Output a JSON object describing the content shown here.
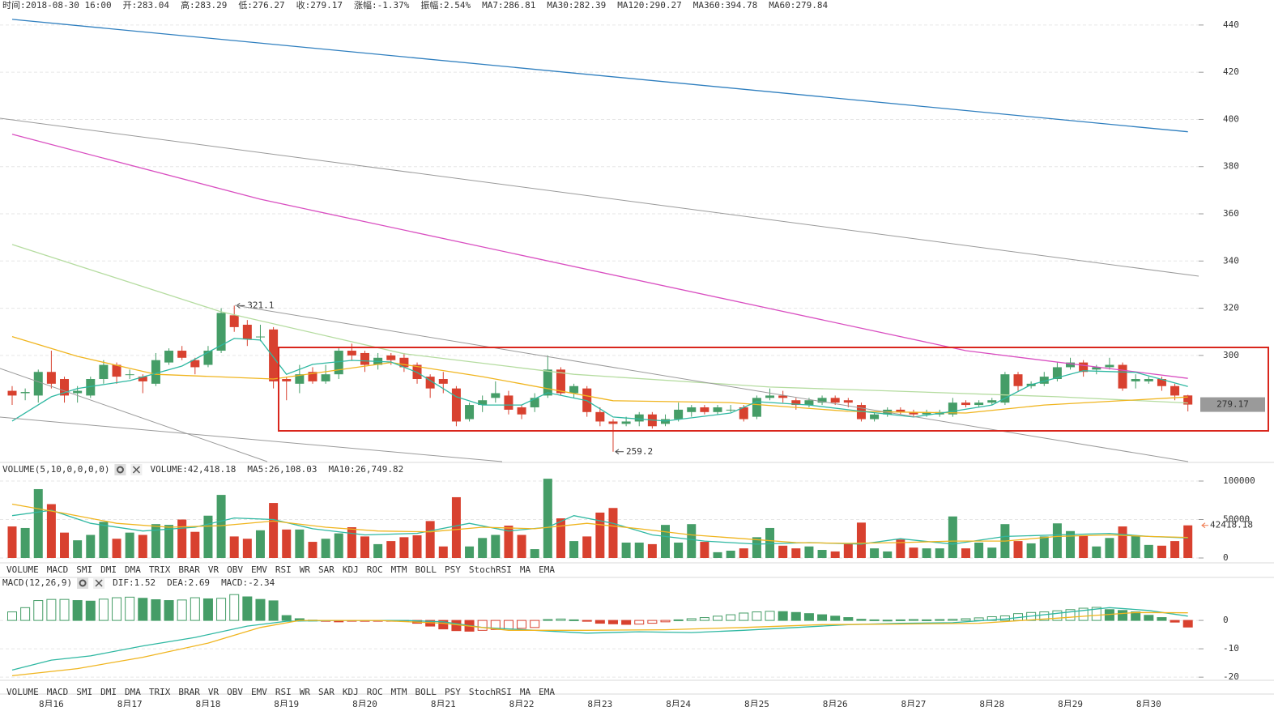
{
  "header": {
    "items": [
      {
        "text": "时间:2018-08-30 16:00"
      },
      {
        "text": "开:283.04"
      },
      {
        "text": "高:283.29"
      },
      {
        "text": "低:276.27"
      },
      {
        "text": "收:279.17"
      },
      {
        "text": "涨幅:",
        "value": "-1.37%",
        "value_color": "#e8412f"
      },
      {
        "text": "振幅:2.54%"
      },
      {
        "text": "MA7:286.81",
        "color": "#2fb8a2"
      },
      {
        "text": "MA30:282.39",
        "color": "#f0b51f"
      },
      {
        "text": "MA120:290.27",
        "color": "#d94fc1"
      },
      {
        "text": "MA360:394.78",
        "color": "#2f7fbf"
      },
      {
        "text": "MA60:279.84",
        "color": "#9fd67f"
      }
    ]
  },
  "indicator_tabs": [
    "VOLUME",
    "MACD",
    "SMI",
    "DMI",
    "DMA",
    "TRIX",
    "BRAR",
    "VR",
    "OBV",
    "EMV",
    "RSI",
    "WR",
    "SAR",
    "KDJ",
    "ROC",
    "MTM",
    "BOLL",
    "PSY",
    "StochRSI",
    "MA",
    "EMA"
  ],
  "chart_data": [
    {
      "type": "candlestick",
      "categories": [
        null,
        null,
        null,
        "8月16",
        null,
        null,
        null,
        null,
        null,
        "8月17",
        null,
        null,
        null,
        null,
        null,
        "8月18",
        null,
        null,
        null,
        null,
        null,
        "8月19",
        null,
        null,
        null,
        null,
        null,
        "8月20",
        null,
        null,
        null,
        null,
        null,
        "8月21",
        null,
        null,
        null,
        null,
        null,
        "8月22",
        null,
        null,
        null,
        null,
        null,
        "8月23",
        null,
        null,
        null,
        null,
        null,
        "8月24",
        null,
        null,
        null,
        null,
        null,
        "8月25",
        null,
        null,
        null,
        null,
        null,
        "8月26",
        null,
        null,
        null,
        null,
        null,
        "8月27",
        null,
        null,
        null,
        null,
        null,
        "8月28",
        null,
        null,
        null,
        null,
        null,
        "8月29",
        null,
        null,
        null,
        null,
        null,
        "8月30",
        null,
        null,
        null
      ],
      "open": [
        285,
        284,
        283,
        293,
        290,
        284,
        283,
        290,
        296,
        292,
        291,
        288,
        297,
        302,
        298,
        296,
        302,
        317,
        313,
        308,
        311,
        290,
        288,
        293,
        289,
        292,
        302,
        301,
        296,
        300,
        299,
        296,
        291,
        290,
        286,
        273,
        279,
        282,
        283,
        278,
        278,
        283,
        294,
        284,
        286,
        276,
        272,
        271,
        272,
        275,
        271,
        273,
        276,
        278,
        276,
        277,
        278,
        274,
        282,
        283,
        281,
        279,
        280,
        282,
        281,
        279,
        273,
        275,
        277,
        276,
        275,
        275,
        275,
        280,
        279,
        280,
        280,
        292,
        287,
        288,
        290,
        295,
        297,
        294,
        295,
        296,
        289,
        289,
        290,
        287,
        283.04
      ],
      "high": [
        287,
        286,
        294,
        302,
        291,
        287,
        291,
        298,
        297,
        294,
        292,
        301,
        303,
        304,
        299,
        304,
        320,
        321.1,
        315,
        313,
        312,
        291,
        296,
        295,
        296,
        303,
        305,
        302,
        301,
        301,
        301,
        297,
        292,
        293,
        287,
        280,
        283,
        289,
        285,
        279,
        284,
        300,
        295,
        288,
        287,
        278,
        273,
        274,
        276,
        276,
        275,
        280,
        279,
        279,
        279,
        279,
        279,
        283,
        286,
        285,
        282,
        282,
        283,
        283,
        282,
        280,
        276,
        278,
        278,
        277,
        277,
        277,
        282,
        281,
        281,
        282,
        293,
        293,
        289,
        293,
        297,
        299,
        298,
        296,
        299,
        297,
        292,
        291,
        291,
        288,
        283.29
      ],
      "low": [
        279,
        281,
        280,
        286,
        280,
        280,
        282,
        288,
        288,
        290,
        284,
        287,
        296,
        298,
        292,
        295,
        301,
        310,
        304,
        306,
        286,
        281,
        284,
        288,
        288,
        290,
        298,
        293,
        294,
        296,
        293,
        288,
        282,
        284,
        270,
        272,
        276,
        280,
        275,
        273,
        276,
        282,
        283,
        282,
        274,
        270,
        259.2,
        270,
        270,
        269,
        270,
        272,
        274,
        275,
        275,
        276,
        272,
        273,
        281,
        280,
        277,
        278,
        279,
        279,
        278,
        272,
        272,
        274,
        275,
        274,
        274,
        274,
        274,
        278,
        278,
        279,
        279,
        285,
        286,
        287,
        289,
        294,
        291,
        292,
        294,
        285,
        286,
        288,
        285,
        281,
        276.27
      ],
      "close": [
        283,
        284.5,
        293,
        288,
        283,
        285,
        290,
        296,
        291,
        292,
        289,
        298,
        302,
        299,
        295,
        302,
        318,
        312,
        307,
        308,
        289,
        289,
        292,
        289,
        292,
        302,
        300,
        296,
        299,
        298,
        295,
        290,
        286,
        288,
        272,
        279,
        281,
        284,
        277,
        275,
        282,
        294,
        284,
        287,
        276,
        272,
        271,
        272,
        275,
        270,
        273,
        277,
        278,
        276,
        278,
        277,
        273,
        282,
        283,
        282,
        279,
        281,
        282,
        280,
        280,
        273,
        275,
        277,
        276,
        275,
        276,
        276,
        280,
        279,
        280,
        281,
        292,
        287,
        288,
        291,
        295,
        297,
        293,
        295,
        296,
        286,
        290,
        290,
        287,
        283,
        279.17
      ],
      "up_color": "#459d67",
      "down_color": "#d8412f",
      "last_value_color": "#9a9a9a",
      "ylim": [
        255,
        450.6
      ],
      "yticks": [
        300,
        320,
        340,
        360,
        380,
        400,
        420,
        440
      ],
      "grid": true,
      "lines": [
        {
          "color": "#2f7fbf",
          "x": [
            0,
            90
          ],
          "values": [
            442.4,
            394.78
          ]
        },
        {
          "color": "#d94fc1",
          "x": [
            0,
            19,
            73,
            90
          ],
          "values": [
            393.7,
            366.2,
            302,
            290.27
          ]
        },
        {
          "color": "#b5dca0",
          "x": [
            0,
            16,
            30,
            43,
            58,
            67,
            80,
            90
          ],
          "values": [
            347,
            318.5,
            300.7,
            292,
            286.6,
            285,
            282.5,
            279.84
          ]
        },
        {
          "color": "#f0b51f",
          "x": [
            0,
            5,
            11,
            20,
            29,
            36,
            46,
            55,
            64,
            73,
            79,
            90
          ],
          "values": [
            308,
            299.6,
            292,
            290,
            297,
            291,
            280.8,
            280,
            276.3,
            275.6,
            279,
            282.39
          ]
        },
        {
          "color": "#2fb8a2",
          "x": [
            0,
            3,
            5,
            9,
            13,
            17,
            19,
            21,
            23,
            26,
            29,
            31,
            34,
            36,
            39,
            41,
            44,
            46,
            50,
            55,
            57,
            61,
            65,
            69,
            72,
            75,
            78,
            82,
            86,
            90
          ],
          "values": [
            272.2,
            282.5,
            286,
            289.3,
            295.5,
            307.2,
            306.5,
            292,
            296.2,
            297.9,
            297.2,
            292.8,
            282.5,
            279,
            279,
            284.2,
            280.8,
            273.9,
            272.2,
            275.6,
            280.4,
            279,
            276.3,
            273.9,
            276.3,
            279,
            287.6,
            293.5,
            292.8,
            286.81
          ]
        }
      ]
    },
    {
      "type": "volume",
      "title": "VOLUME(5,10,0,0,0,0)",
      "active_tab": "VOLUME",
      "legend_items": [
        {
          "text": "VOLUME:42,418.18",
          "color": "#333333"
        },
        {
          "text": "MA5:26,108.03",
          "color": "#2fb8a2"
        },
        {
          "text": "MA10:26,749.82",
          "color": "#f0b51f"
        }
      ],
      "values": [
        41000,
        39000,
        89500,
        70000,
        33000,
        23000,
        30000,
        47000,
        25000,
        33000,
        30000,
        44000,
        43000,
        50000,
        34000,
        55000,
        82000,
        28000,
        25000,
        36000,
        71500,
        37000,
        37000,
        21000,
        25000,
        32000,
        40000,
        28000,
        18000,
        22000,
        27000,
        29500,
        48000,
        15000,
        79000,
        15000,
        26000,
        30000,
        42000,
        30000,
        11500,
        103000,
        51500,
        22000,
        28000,
        59000,
        65000,
        20000,
        20000,
        18000,
        43000,
        20000,
        44000,
        21000,
        7500,
        9500,
        12500,
        27000,
        39000,
        16000,
        12500,
        15000,
        10500,
        8500,
        18000,
        46000,
        12500,
        8500,
        24000,
        13500,
        12500,
        12500,
        54000,
        12500,
        20000,
        13500,
        44000,
        22000,
        19000,
        28000,
        45000,
        35000,
        29500,
        15000,
        26000,
        41000,
        29500,
        17000,
        16000,
        22000,
        42418.18
      ],
      "last_value_color": "#f07b4f",
      "ylim": [
        0,
        104210
      ],
      "yticks": [
        0,
        50000,
        100000
      ],
      "grid": true,
      "lines": [
        {
          "color": "#2fb8a2",
          "x": [
            0,
            3,
            6,
            10,
            14,
            17,
            20,
            23,
            27,
            31,
            35,
            38,
            41,
            43,
            46,
            49,
            53,
            57,
            61,
            65,
            68,
            72,
            76,
            80,
            84,
            87,
            90
          ],
          "values": [
            55000,
            62000,
            45000,
            35000,
            40000,
            52000,
            50000,
            38000,
            30000,
            32000,
            45000,
            35000,
            40000,
            55000,
            45000,
            30000,
            22000,
            18000,
            20000,
            18000,
            25000,
            18000,
            28000,
            30000,
            32000,
            28000,
            26108.03
          ]
        },
        {
          "color": "#f0b51f",
          "x": [
            0,
            4,
            8,
            12,
            16,
            20,
            24,
            28,
            32,
            36,
            40,
            44,
            48,
            52,
            56,
            60,
            64,
            68,
            72,
            76,
            80,
            84,
            87,
            90
          ],
          "values": [
            70000,
            58000,
            45000,
            40000,
            42000,
            48000,
            40000,
            35000,
            34000,
            40000,
            38000,
            45000,
            38000,
            30000,
            25000,
            20000,
            19000,
            20000,
            22000,
            22000,
            28000,
            30000,
            28000,
            26749.82
          ]
        }
      ]
    },
    {
      "type": "macd",
      "title": "MACD(12,26,9)",
      "active_tab": "MACD",
      "legend_items": [
        {
          "text": "DIF:1.52",
          "color": "#2fb8a2"
        },
        {
          "text": "DEA:2.69",
          "color": "#f0b51f"
        },
        {
          "text": "MACD:-2.34",
          "color": "#d94fc1"
        }
      ],
      "values": [
        3,
        4.5,
        7,
        7.4,
        7.4,
        7,
        6.8,
        7.5,
        8,
        8.2,
        7.8,
        7.3,
        7,
        7.2,
        8,
        7.6,
        7.8,
        9.1,
        8.3,
        7.4,
        6.9,
        1.7,
        0.6,
        0.1,
        -0.3,
        -0.5,
        -0.2,
        -0.3,
        -0.2,
        -0.1,
        -0.3,
        -1,
        -2,
        -3,
        -3.6,
        -3.8,
        -3.5,
        -3.2,
        -3,
        -2.8,
        -2.5,
        0.3,
        0.5,
        0.2,
        -0.3,
        -1,
        -1.2,
        -1.4,
        -1.3,
        -1,
        -0.5,
        0.2,
        0.6,
        1,
        1.5,
        2,
        2.6,
        3,
        3.2,
        3.1,
        2.8,
        2.4,
        2,
        1.5,
        1,
        0.4,
        0.2,
        0.1,
        0.2,
        0.3,
        0.2,
        0.3,
        0.4,
        0.6,
        0.9,
        1.3,
        1.6,
        2.4,
        2.8,
        3,
        3.4,
        3.8,
        4.3,
        4.6,
        3.8,
        3.5,
        3,
        1.8,
        1,
        -0.6,
        -2.34
      ],
      "up_color": "#459d67",
      "down_color": "#d8412f",
      "ylim": [
        -21.1,
        10.3
      ],
      "yticks": [
        -20,
        -10,
        0
      ],
      "grid": true,
      "lines": [
        {
          "color": "#2fb8a2",
          "x": [
            0,
            3,
            6,
            10,
            14,
            18,
            21,
            25,
            30,
            33,
            36,
            40,
            44,
            48,
            52,
            56,
            60,
            64,
            68,
            72,
            76,
            80,
            84,
            87,
            90
          ],
          "values": [
            -17.5,
            -14,
            -12.5,
            -9,
            -6,
            -2,
            -0.3,
            0,
            0,
            -0.5,
            -2.5,
            -3.5,
            -4.5,
            -4,
            -4.3,
            -3.5,
            -2.5,
            -1.5,
            -1,
            -0.8,
            0.5,
            2.5,
            4.5,
            3.5,
            1.52
          ]
        },
        {
          "color": "#f0b51f",
          "x": [
            0,
            5,
            10,
            15,
            19,
            22,
            28,
            33,
            38,
            44,
            50,
            56,
            62,
            68,
            74,
            80,
            86,
            90
          ],
          "values": [
            -19.5,
            -17,
            -13,
            -8,
            -2.5,
            0,
            0,
            -1,
            -3.5,
            -3.5,
            -3.3,
            -2.5,
            -1.5,
            -1.3,
            -1,
            0.8,
            2.8,
            2.69
          ]
        }
      ]
    }
  ]
}
